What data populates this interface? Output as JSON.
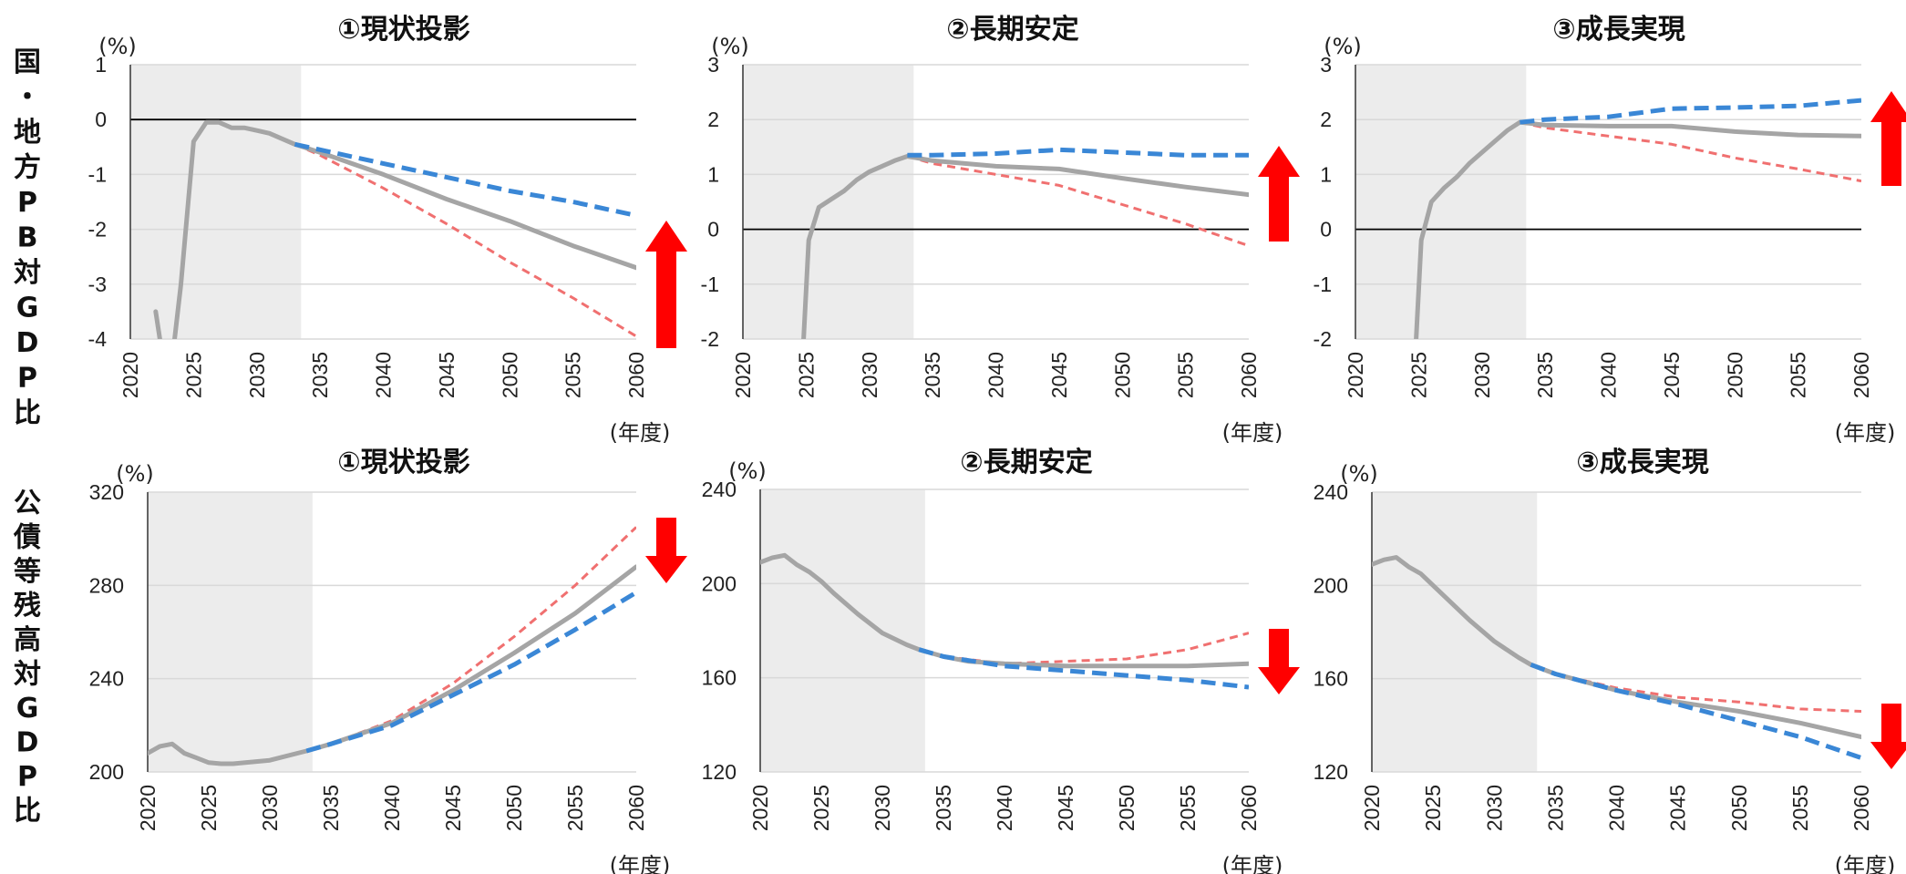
{
  "row_labels": [
    "国・地方PB対GDP比",
    "公債等残高対GDP比"
  ],
  "colors": {
    "baseline": "#a5a5a5",
    "upper_dashed": "#3a87d6",
    "lower_dashed": "#f07070",
    "arrow": "#ff0000",
    "shade": "#ececec",
    "zero_line": "#000000"
  },
  "chart_data": [
    {
      "type": "line",
      "title": "①現状投影",
      "ylabel": "(%)",
      "xlabel": "(年度)",
      "xlim": [
        2020,
        2060
      ],
      "ylim": [
        -4,
        1
      ],
      "yticks": [
        "1",
        "0",
        "-1",
        "-2",
        "-3",
        "-4"
      ],
      "xticks": [
        "2020",
        "2025",
        "2030",
        "2035",
        "2040",
        "2045",
        "2050",
        "2055",
        "2060"
      ],
      "shaded_x": [
        2020,
        2033.5
      ],
      "zero_line": true,
      "arrow": "up",
      "series": [
        {
          "style": "solid",
          "x": [
            2022,
            2023,
            2024,
            2025,
            2026,
            2027,
            2028,
            2029,
            2030,
            2031,
            2032,
            2033,
            2035,
            2040,
            2045,
            2050,
            2055,
            2060
          ],
          "y": [
            -3.5,
            -5,
            -3,
            -0.4,
            -0.05,
            -0.05,
            -0.15,
            -0.15,
            -0.2,
            -0.25,
            -0.35,
            -0.45,
            -0.6,
            -1.0,
            -1.45,
            -1.85,
            -2.3,
            -2.7
          ]
        },
        {
          "style": "dashed-blue",
          "x": [
            2033,
            2035,
            2040,
            2045,
            2050,
            2055,
            2060
          ],
          "y": [
            -0.45,
            -0.55,
            -0.8,
            -1.05,
            -1.3,
            -1.5,
            -1.75
          ]
        },
        {
          "style": "dashed-red",
          "x": [
            2033,
            2035,
            2040,
            2045,
            2050,
            2055,
            2060
          ],
          "y": [
            -0.45,
            -0.65,
            -1.25,
            -1.9,
            -2.6,
            -3.25,
            -3.95
          ]
        }
      ]
    },
    {
      "type": "line",
      "title": "②長期安定",
      "ylabel": "(%)",
      "xlabel": "(年度)",
      "xlim": [
        2020,
        2060
      ],
      "ylim": [
        -2,
        3
      ],
      "yticks": [
        "3",
        "2",
        "1",
        "0",
        "-1",
        "-2"
      ],
      "xticks": [
        "2020",
        "2025",
        "2030",
        "2035",
        "2040",
        "2045",
        "2050",
        "2055",
        "2060"
      ],
      "shaded_x": [
        2020,
        2033.5
      ],
      "zero_line": true,
      "arrow": "up",
      "series": [
        {
          "style": "solid",
          "x": [
            2024.8,
            2025.2,
            2026,
            2027,
            2028,
            2029,
            2030,
            2031,
            2032,
            2033,
            2035,
            2040,
            2045,
            2050,
            2055,
            2060
          ],
          "y": [
            -2,
            -0.2,
            0.4,
            0.55,
            0.7,
            0.9,
            1.05,
            1.15,
            1.25,
            1.33,
            1.25,
            1.15,
            1.1,
            0.93,
            0.77,
            0.63
          ]
        },
        {
          "style": "dashed-blue",
          "x": [
            2033,
            2035,
            2040,
            2045,
            2050,
            2055,
            2060
          ],
          "y": [
            1.35,
            1.35,
            1.38,
            1.45,
            1.4,
            1.35,
            1.35
          ]
        },
        {
          "style": "dashed-red",
          "x": [
            2033,
            2035,
            2040,
            2045,
            2050,
            2055,
            2060
          ],
          "y": [
            1.33,
            1.2,
            1.0,
            0.8,
            0.45,
            0.1,
            -0.3
          ]
        }
      ]
    },
    {
      "type": "line",
      "title": "③成長実現",
      "ylabel": "(%)",
      "xlabel": "(年度)",
      "xlim": [
        2020,
        2060
      ],
      "ylim": [
        -2,
        3
      ],
      "yticks": [
        "3",
        "2",
        "1",
        "0",
        "-1",
        "-2"
      ],
      "xticks": [
        "2020",
        "2025",
        "2030",
        "2035",
        "2040",
        "2045",
        "2050",
        "2055",
        "2060"
      ],
      "shaded_x": [
        2020,
        2033.5
      ],
      "zero_line": true,
      "arrow": "up",
      "series": [
        {
          "style": "solid",
          "x": [
            2024.8,
            2025.2,
            2026,
            2027,
            2028,
            2029,
            2030,
            2031,
            2032,
            2033,
            2035,
            2040,
            2045,
            2050,
            2055,
            2060
          ],
          "y": [
            -2,
            -0.2,
            0.5,
            0.75,
            0.95,
            1.2,
            1.4,
            1.6,
            1.8,
            1.95,
            1.9,
            1.88,
            1.88,
            1.78,
            1.72,
            1.7
          ]
        },
        {
          "style": "dashed-blue",
          "x": [
            2033,
            2035,
            2040,
            2045,
            2050,
            2055,
            2060
          ],
          "y": [
            1.95,
            2.0,
            2.05,
            2.2,
            2.22,
            2.25,
            2.35
          ]
        },
        {
          "style": "dashed-red",
          "x": [
            2033,
            2035,
            2040,
            2045,
            2050,
            2055,
            2060
          ],
          "y": [
            1.95,
            1.85,
            1.7,
            1.55,
            1.3,
            1.1,
            0.88
          ]
        }
      ]
    },
    {
      "type": "line",
      "title": "①現状投影",
      "ylabel": "(%)",
      "xlabel": "(年度)",
      "xlim": [
        2020,
        2060
      ],
      "ylim": [
        200,
        320
      ],
      "yticks": [
        "320",
        "280",
        "240",
        "200"
      ],
      "xticks": [
        "2020",
        "2025",
        "2030",
        "2035",
        "2040",
        "2045",
        "2050",
        "2055",
        "2060"
      ],
      "shaded_x": [
        2020,
        2033.5
      ],
      "zero_line": false,
      "arrow": "down",
      "series": [
        {
          "style": "solid",
          "x": [
            2020,
            2021,
            2022,
            2023,
            2024,
            2025,
            2026,
            2027,
            2028,
            2030,
            2033,
            2035,
            2040,
            2045,
            2050,
            2055,
            2060
          ],
          "y": [
            208,
            211,
            212,
            208,
            206,
            204,
            203.5,
            203.5,
            204,
            205,
            209,
            212,
            221,
            235,
            251,
            268,
            288
          ]
        },
        {
          "style": "dashed-blue",
          "x": [
            2033,
            2035,
            2040,
            2045,
            2050,
            2055,
            2060
          ],
          "y": [
            209,
            212,
            220,
            233,
            246,
            261,
            277
          ]
        },
        {
          "style": "dashed-red",
          "x": [
            2033,
            2035,
            2040,
            2045,
            2050,
            2055,
            2060
          ],
          "y": [
            209,
            212,
            222,
            238,
            258,
            280,
            305
          ]
        }
      ]
    },
    {
      "type": "line",
      "title": "②長期安定",
      "ylabel": "(%)",
      "xlabel": "(年度)",
      "xlim": [
        2020,
        2060
      ],
      "ylim": [
        120,
        240
      ],
      "yticks": [
        "240",
        "200",
        "160",
        "120"
      ],
      "xticks": [
        "2020",
        "2025",
        "2030",
        "2035",
        "2040",
        "2045",
        "2050",
        "2055",
        "2060"
      ],
      "shaded_x": [
        2020,
        2033.5
      ],
      "zero_line": false,
      "arrow": "down",
      "series": [
        {
          "style": "solid",
          "x": [
            2020,
            2021,
            2022,
            2023,
            2024,
            2025,
            2026,
            2028,
            2030,
            2032,
            2033,
            2035,
            2037,
            2040,
            2045,
            2050,
            2055,
            2060
          ],
          "y": [
            209,
            211,
            212,
            208,
            205,
            201,
            196,
            187,
            179,
            174,
            172,
            169,
            167,
            166,
            165,
            165,
            165,
            166
          ]
        },
        {
          "style": "dashed-blue",
          "x": [
            2033,
            2035,
            2040,
            2045,
            2050,
            2055,
            2060
          ],
          "y": [
            172,
            169,
            165,
            163,
            161,
            159,
            156
          ]
        },
        {
          "style": "dashed-red",
          "x": [
            2033,
            2035,
            2040,
            2045,
            2050,
            2055,
            2060
          ],
          "y": [
            172,
            169,
            166,
            167,
            168,
            172,
            179
          ]
        }
      ]
    },
    {
      "type": "line",
      "title": "③成長実現",
      "ylabel": "(%)",
      "xlabel": "(年度)",
      "xlim": [
        2020,
        2060
      ],
      "ylim": [
        120,
        240
      ],
      "yticks": [
        "240",
        "200",
        "160",
        "120"
      ],
      "xticks": [
        "2020",
        "2025",
        "2030",
        "2035",
        "2040",
        "2045",
        "2050",
        "2055",
        "2060"
      ],
      "shaded_x": [
        2020,
        2033.5
      ],
      "zero_line": false,
      "arrow": "down",
      "series": [
        {
          "style": "solid",
          "x": [
            2020,
            2021,
            2022,
            2023,
            2024,
            2025,
            2026,
            2028,
            2030,
            2032,
            2033,
            2035,
            2040,
            2045,
            2050,
            2055,
            2060
          ],
          "y": [
            209,
            211,
            212,
            208,
            205,
            200,
            195,
            185,
            176,
            169,
            166,
            162,
            155,
            150,
            146,
            141,
            135
          ]
        },
        {
          "style": "dashed-blue",
          "x": [
            2033,
            2035,
            2040,
            2045,
            2050,
            2055,
            2060
          ],
          "y": [
            166,
            162,
            155,
            149,
            142,
            135,
            126
          ]
        },
        {
          "style": "dashed-red",
          "x": [
            2033,
            2035,
            2040,
            2045,
            2050,
            2055,
            2060
          ],
          "y": [
            166,
            162,
            156,
            152,
            150,
            147,
            146
          ]
        }
      ]
    }
  ]
}
